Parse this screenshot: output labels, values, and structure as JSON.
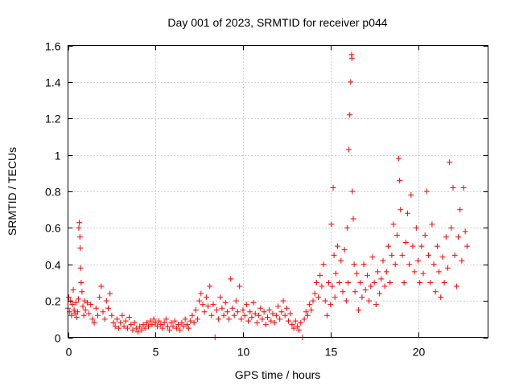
{
  "chart_data": {
    "type": "scatter",
    "title": "Day 001 of 2023, SRMTID for receiver p044",
    "xlabel": "GPS time / hours",
    "ylabel": "SRMTID / TECUs",
    "xlim": [
      0,
      24
    ],
    "ylim": [
      0,
      1.6
    ],
    "xticks": [
      0,
      5,
      10,
      15,
      20
    ],
    "yticks": [
      0,
      0.2,
      0.4,
      0.6,
      0.8,
      1,
      1.2,
      1.4,
      1.6
    ],
    "xtick_labels": [
      "0",
      "5",
      "10",
      "15",
      "20"
    ],
    "ytick_labels": [
      "0",
      "0.2",
      "0.4",
      "0.6",
      "0.8",
      "1",
      "1.2",
      "1.4",
      "1.6"
    ],
    "grid": true,
    "marker": "+",
    "color": "#ff0000",
    "series": [
      {
        "name": "SRMTID",
        "points": [
          [
            0.0,
            0.16
          ],
          [
            0.05,
            0.22
          ],
          [
            0.1,
            0.14
          ],
          [
            0.15,
            0.2
          ],
          [
            0.2,
            0.12
          ],
          [
            0.25,
            0.18
          ],
          [
            0.3,
            0.26
          ],
          [
            0.35,
            0.15
          ],
          [
            0.4,
            0.13
          ],
          [
            0.45,
            0.19
          ],
          [
            0.5,
            0.11
          ],
          [
            0.55,
            0.14
          ],
          [
            0.6,
            0.21
          ],
          [
            0.62,
            0.6
          ],
          [
            0.65,
            0.63
          ],
          [
            0.68,
            0.55
          ],
          [
            0.7,
            0.49
          ],
          [
            0.72,
            0.38
          ],
          [
            0.75,
            0.3
          ],
          [
            0.8,
            0.25
          ],
          [
            0.85,
            0.17
          ],
          [
            0.9,
            0.12
          ],
          [
            0.95,
            0.2
          ],
          [
            1.0,
            0.15
          ],
          [
            1.1,
            0.19
          ],
          [
            1.2,
            0.13
          ],
          [
            1.3,
            0.18
          ],
          [
            1.4,
            0.1
          ],
          [
            1.5,
            0.08
          ],
          [
            1.6,
            0.16
          ],
          [
            1.7,
            0.12
          ],
          [
            1.8,
            0.22
          ],
          [
            1.9,
            0.28
          ],
          [
            2.0,
            0.14
          ],
          [
            2.1,
            0.1
          ],
          [
            2.2,
            0.2
          ],
          [
            2.3,
            0.16
          ],
          [
            2.4,
            0.24
          ],
          [
            2.5,
            0.12
          ],
          [
            2.6,
            0.08
          ],
          [
            2.7,
            0.06
          ],
          [
            2.8,
            0.1
          ],
          [
            2.9,
            0.05
          ],
          [
            3.0,
            0.08
          ],
          [
            3.1,
            0.12
          ],
          [
            3.2,
            0.06
          ],
          [
            3.3,
            0.09
          ],
          [
            3.4,
            0.05
          ],
          [
            3.5,
            0.11
          ],
          [
            3.6,
            0.07
          ],
          [
            3.7,
            0.04
          ],
          [
            3.8,
            0.08
          ],
          [
            3.9,
            0.05
          ],
          [
            4.0,
            0.03
          ],
          [
            4.1,
            0.06
          ],
          [
            4.2,
            0.04
          ],
          [
            4.3,
            0.07
          ],
          [
            4.4,
            0.05
          ],
          [
            4.5,
            0.08
          ],
          [
            4.6,
            0.06
          ],
          [
            4.7,
            0.09
          ],
          [
            4.8,
            0.07
          ],
          [
            4.9,
            0.1
          ],
          [
            5.0,
            0.08
          ],
          [
            5.1,
            0.06
          ],
          [
            5.2,
            0.09
          ],
          [
            5.3,
            0.07
          ],
          [
            5.4,
            0.05
          ],
          [
            5.5,
            0.08
          ],
          [
            5.6,
            0.1
          ],
          [
            5.7,
            0.06
          ],
          [
            5.8,
            0.04
          ],
          [
            5.9,
            0.08
          ],
          [
            6.0,
            0.06
          ],
          [
            6.1,
            0.09
          ],
          [
            6.2,
            0.05
          ],
          [
            6.3,
            0.07
          ],
          [
            6.4,
            0.04
          ],
          [
            6.5,
            0.08
          ],
          [
            6.6,
            0.06
          ],
          [
            6.7,
            0.1
          ],
          [
            6.8,
            0.07
          ],
          [
            6.9,
            0.05
          ],
          [
            7.0,
            0.09
          ],
          [
            7.1,
            0.12
          ],
          [
            7.2,
            0.08
          ],
          [
            7.3,
            0.15
          ],
          [
            7.4,
            0.1
          ],
          [
            7.5,
            0.2
          ],
          [
            7.6,
            0.24
          ],
          [
            7.7,
            0.18
          ],
          [
            7.8,
            0.14
          ],
          [
            7.9,
            0.22
          ],
          [
            8.0,
            0.17
          ],
          [
            8.1,
            0.28
          ],
          [
            8.2,
            0.12
          ],
          [
            8.3,
            0.18
          ],
          [
            8.4,
            0.0
          ],
          [
            8.5,
            0.15
          ],
          [
            8.6,
            0.1
          ],
          [
            8.7,
            0.22
          ],
          [
            8.8,
            0.16
          ],
          [
            8.9,
            0.12
          ],
          [
            9.0,
            0.19
          ],
          [
            9.1,
            0.14
          ],
          [
            9.2,
            0.1
          ],
          [
            9.3,
            0.32
          ],
          [
            9.4,
            0.16
          ],
          [
            9.5,
            0.12
          ],
          [
            9.6,
            0.2
          ],
          [
            9.7,
            0.14
          ],
          [
            9.8,
            0.28
          ],
          [
            9.9,
            0.1
          ],
          [
            10.0,
            0.15
          ],
          [
            10.1,
            0.12
          ],
          [
            10.2,
            0.18
          ],
          [
            10.3,
            0.09
          ],
          [
            10.4,
            0.14
          ],
          [
            10.5,
            0.11
          ],
          [
            10.6,
            0.19
          ],
          [
            10.7,
            0.13
          ],
          [
            10.8,
            0.08
          ],
          [
            10.9,
            0.12
          ],
          [
            11.0,
            0.16
          ],
          [
            11.1,
            0.1
          ],
          [
            11.2,
            0.14
          ],
          [
            11.3,
            0.07
          ],
          [
            11.4,
            0.11
          ],
          [
            11.5,
            0.15
          ],
          [
            11.6,
            0.09
          ],
          [
            11.7,
            0.13
          ],
          [
            11.8,
            0.08
          ],
          [
            11.9,
            0.12
          ],
          [
            12.0,
            0.17
          ],
          [
            12.1,
            0.1
          ],
          [
            12.2,
            0.14
          ],
          [
            12.3,
            0.2
          ],
          [
            12.4,
            0.12
          ],
          [
            12.5,
            0.16
          ],
          [
            12.6,
            0.09
          ],
          [
            12.7,
            0.13
          ],
          [
            12.8,
            0.07
          ],
          [
            12.9,
            0.05
          ],
          [
            13.0,
            0.09
          ],
          [
            13.1,
            0.06
          ],
          [
            13.2,
            0.04
          ],
          [
            13.3,
            0.08
          ],
          [
            13.4,
            0.0
          ],
          [
            13.5,
            0.1
          ],
          [
            13.6,
            0.14
          ],
          [
            13.7,
            0.12
          ],
          [
            13.8,
            0.18
          ],
          [
            13.9,
            0.15
          ],
          [
            14.0,
            0.2
          ],
          [
            14.1,
            0.24
          ],
          [
            14.2,
            0.3
          ],
          [
            14.3,
            0.22
          ],
          [
            14.4,
            0.34
          ],
          [
            14.5,
            0.28
          ],
          [
            14.6,
            0.4
          ],
          [
            14.7,
            0.2
          ],
          [
            14.8,
            0.12
          ],
          [
            14.9,
            0.3
          ],
          [
            15.0,
            0.18
          ],
          [
            15.05,
            0.62
          ],
          [
            15.1,
            0.28
          ],
          [
            15.15,
            0.82
          ],
          [
            15.2,
            0.45
          ],
          [
            15.25,
            0.22
          ],
          [
            15.3,
            0.35
          ],
          [
            15.4,
            0.5
          ],
          [
            15.5,
            0.3
          ],
          [
            15.6,
            0.42
          ],
          [
            15.7,
            0.25
          ],
          [
            15.8,
            0.48
          ],
          [
            15.9,
            0.2
          ],
          [
            15.95,
            0.6
          ],
          [
            16.0,
            0.3
          ],
          [
            16.05,
            1.03
          ],
          [
            16.1,
            1.22
          ],
          [
            16.15,
            1.4
          ],
          [
            16.2,
            1.55
          ],
          [
            16.22,
            1.53
          ],
          [
            16.25,
            0.8
          ],
          [
            16.3,
            0.65
          ],
          [
            16.35,
            0.4
          ],
          [
            16.4,
            0.25
          ],
          [
            16.5,
            0.35
          ],
          [
            16.6,
            0.15
          ],
          [
            16.7,
            0.3
          ],
          [
            16.8,
            0.22
          ],
          [
            16.9,
            0.4
          ],
          [
            17.0,
            0.26
          ],
          [
            17.1,
            0.34
          ],
          [
            17.2,
            0.2
          ],
          [
            17.3,
            0.28
          ],
          [
            17.4,
            0.44
          ],
          [
            17.5,
            0.3
          ],
          [
            17.6,
            0.18
          ],
          [
            17.7,
            0.36
          ],
          [
            17.8,
            0.24
          ],
          [
            17.9,
            0.32
          ],
          [
            18.0,
            0.42
          ],
          [
            18.1,
            0.28
          ],
          [
            18.2,
            0.36
          ],
          [
            18.3,
            0.5
          ],
          [
            18.4,
            0.3
          ],
          [
            18.5,
            0.45
          ],
          [
            18.6,
            0.62
          ],
          [
            18.7,
            0.4
          ],
          [
            18.8,
            0.56
          ],
          [
            18.9,
            0.98
          ],
          [
            18.95,
            0.86
          ],
          [
            19.0,
            0.7
          ],
          [
            19.1,
            0.45
          ],
          [
            19.2,
            0.3
          ],
          [
            19.3,
            0.52
          ],
          [
            19.4,
            0.68
          ],
          [
            19.5,
            0.4
          ],
          [
            19.6,
            0.78
          ],
          [
            19.7,
            0.5
          ],
          [
            19.8,
            0.36
          ],
          [
            19.9,
            0.6
          ],
          [
            20.0,
            0.42
          ],
          [
            20.1,
            0.3
          ],
          [
            20.2,
            0.5
          ],
          [
            20.3,
            0.35
          ],
          [
            20.4,
            0.56
          ],
          [
            20.5,
            0.8
          ],
          [
            20.6,
            0.45
          ],
          [
            20.7,
            0.3
          ],
          [
            20.8,
            0.62
          ],
          [
            20.9,
            0.4
          ],
          [
            21.0,
            0.25
          ],
          [
            21.1,
            0.5
          ],
          [
            21.2,
            0.36
          ],
          [
            21.3,
            0.22
          ],
          [
            21.4,
            0.44
          ],
          [
            21.5,
            0.3
          ],
          [
            21.6,
            0.55
          ],
          [
            21.7,
            0.38
          ],
          [
            21.8,
            0.96
          ],
          [
            21.9,
            0.6
          ],
          [
            22.0,
            0.82
          ],
          [
            22.1,
            0.45
          ],
          [
            22.2,
            0.28
          ],
          [
            22.3,
            0.55
          ],
          [
            22.4,
            0.7
          ],
          [
            22.5,
            0.42
          ],
          [
            22.6,
            0.82
          ],
          [
            22.7,
            0.58
          ],
          [
            22.8,
            0.5
          ]
        ]
      }
    ]
  }
}
